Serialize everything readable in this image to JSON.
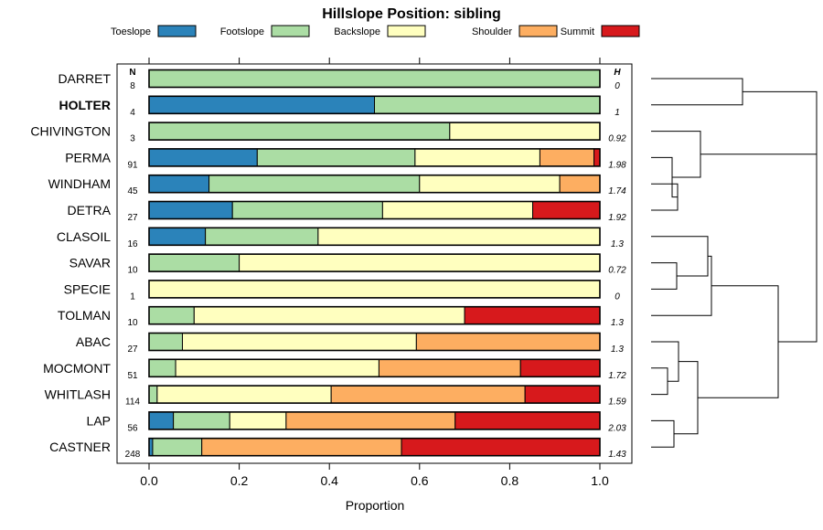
{
  "chart_data": {
    "type": "bar",
    "orientation": "horizontal",
    "stacked": true,
    "title": "Hillslope Position: sibling",
    "xlabel": "Proportion",
    "ylabel": "",
    "xlim": [
      0,
      1
    ],
    "xticks": [
      "0.0",
      "0.2",
      "0.4",
      "0.6",
      "0.8",
      "1.0"
    ],
    "xtick_values": [
      0,
      0.2,
      0.4,
      0.6,
      0.8,
      1.0
    ],
    "n_header": "N",
    "h_header": "H",
    "highlight": "HOLTER",
    "legend_position": "top",
    "classes": [
      {
        "name": "Toeslope",
        "color": "#2b83ba"
      },
      {
        "name": "Footslope",
        "color": "#abdda4"
      },
      {
        "name": "Backslope",
        "color": "#ffffbf"
      },
      {
        "name": "Shoulder",
        "color": "#fdae61"
      },
      {
        "name": "Summit",
        "color": "#d7191c"
      }
    ],
    "rows": [
      {
        "name": "DARRET",
        "n": "8",
        "h": "0",
        "values": [
          0,
          1.0,
          0,
          0,
          0
        ]
      },
      {
        "name": "HOLTER",
        "n": "4",
        "h": "1",
        "values": [
          0.5,
          0.5,
          0,
          0,
          0
        ]
      },
      {
        "name": "CHIVINGTON",
        "n": "3",
        "h": "0.92",
        "values": [
          0,
          0.667,
          0.333,
          0,
          0
        ]
      },
      {
        "name": "PERMA",
        "n": "91",
        "h": "1.98",
        "values": [
          0.24,
          0.35,
          0.277,
          0.12,
          0.013
        ]
      },
      {
        "name": "WINDHAM",
        "n": "45",
        "h": "1.74",
        "values": [
          0.133,
          0.467,
          0.311,
          0.089,
          0
        ]
      },
      {
        "name": "DETRA",
        "n": "27",
        "h": "1.92",
        "values": [
          0.185,
          0.333,
          0.333,
          0,
          0.149
        ]
      },
      {
        "name": "CLASOIL",
        "n": "16",
        "h": "1.3",
        "values": [
          0.125,
          0.25,
          0.625,
          0,
          0
        ]
      },
      {
        "name": "SAVAR",
        "n": "10",
        "h": "0.72",
        "values": [
          0,
          0.2,
          0.8,
          0,
          0
        ]
      },
      {
        "name": "SPECIE",
        "n": "1",
        "h": "0",
        "values": [
          0,
          0,
          1.0,
          0,
          0
        ]
      },
      {
        "name": "TOLMAN",
        "n": "10",
        "h": "1.3",
        "values": [
          0,
          0.1,
          0.6,
          0,
          0.3
        ]
      },
      {
        "name": "ABAC",
        "n": "27",
        "h": "1.3",
        "values": [
          0,
          0.074,
          0.519,
          0.407,
          0
        ]
      },
      {
        "name": "MOCMONT",
        "n": "51",
        "h": "1.72",
        "values": [
          0,
          0.059,
          0.451,
          0.314,
          0.176
        ]
      },
      {
        "name": "WHITLASH",
        "n": "114",
        "h": "1.59",
        "values": [
          0,
          0.018,
          0.386,
          0.43,
          0.166
        ]
      },
      {
        "name": "LAP",
        "n": "56",
        "h": "2.03",
        "values": [
          0.054,
          0.125,
          0.125,
          0.375,
          0.321
        ]
      },
      {
        "name": "CASTNER",
        "n": "248",
        "h": "1.43",
        "values": [
          0.008,
          0.109,
          0.0,
          0.443,
          0.44
        ]
      }
    ],
    "dendrogram": {
      "type": "hierarchical-clustering",
      "position": "right",
      "merge_order": [
        [
          "WINDHAM",
          "DETRA"
        ],
        [
          "PERMA",
          "WINDHAM+DETRA"
        ],
        [
          "CHIVINGTON",
          "PERMA+WINDHAM+DETRA"
        ],
        [
          "DARRET",
          "HOLTER"
        ],
        [
          "DARRET+HOLTER",
          "CHIVINGTON+..."
        ],
        [
          "SAVAR",
          "SPECIE"
        ],
        [
          "CLASOIL",
          "SAVAR+SPECIE"
        ],
        [
          "CLASOIL+SAVAR+SPECIE",
          "TOLMAN"
        ],
        [
          "MOCMONT",
          "WHITLASH"
        ],
        [
          "ABAC",
          "MOCMONT+WHITLASH"
        ],
        [
          "LAP",
          "CASTNER"
        ],
        [
          "ABAC+MOCMONT+WHITLASH",
          "LAP+CASTNER"
        ],
        [
          "CLASOIL+...+TOLMAN",
          "ABAC+...+CASTNER"
        ],
        [
          "upper-cluster",
          "lower-cluster"
        ]
      ]
    }
  }
}
